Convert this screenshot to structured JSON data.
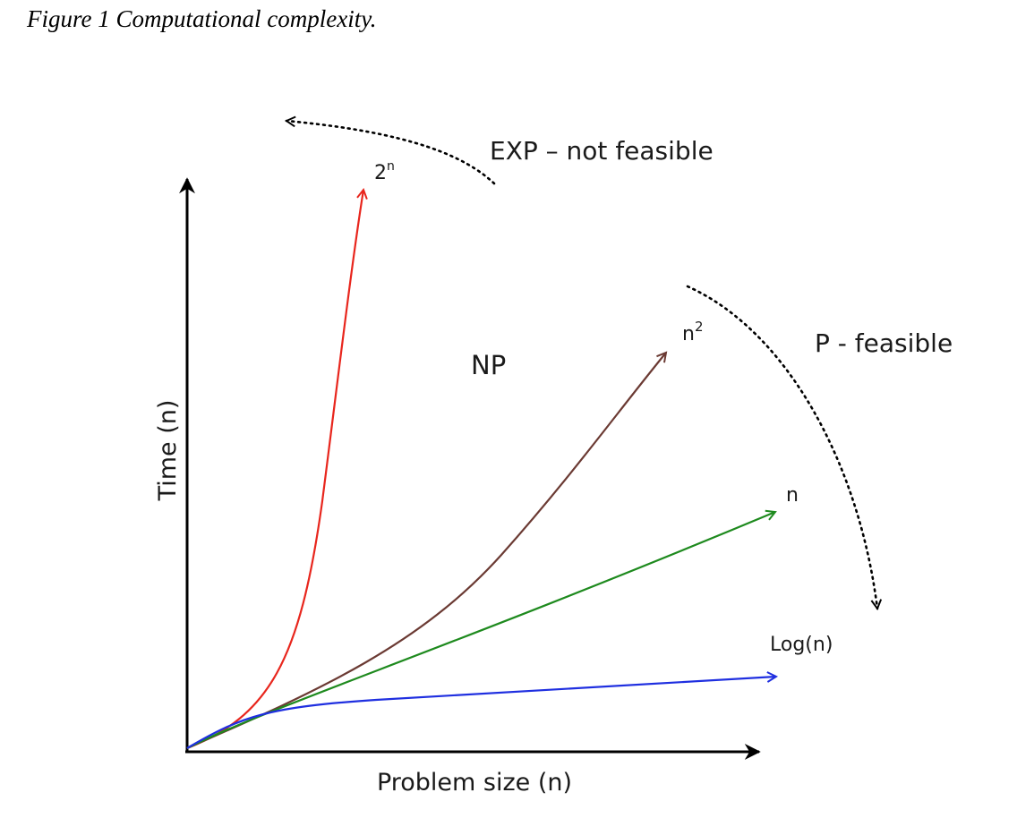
{
  "caption": "Figure 1 Computational complexity.",
  "axes": {
    "x_label": "Problem size (n)",
    "y_label": "Time (n)"
  },
  "curves": [
    {
      "id": "exp",
      "label_base": "2",
      "label_sup": "n",
      "color": "#e8261d"
    },
    {
      "id": "quadratic",
      "label_base": "n",
      "label_sup": "2",
      "color": "#6b3a33"
    },
    {
      "id": "linear",
      "label_base": "n",
      "label_sup": "",
      "color": "#1e8a1e"
    },
    {
      "id": "log",
      "label_base": "Log(n)",
      "label_sup": "",
      "color": "#1f2fe0"
    }
  ],
  "regions": {
    "exp_region": "EXP – not feasible",
    "np_region": "NP",
    "p_region": "P - feasible"
  }
}
